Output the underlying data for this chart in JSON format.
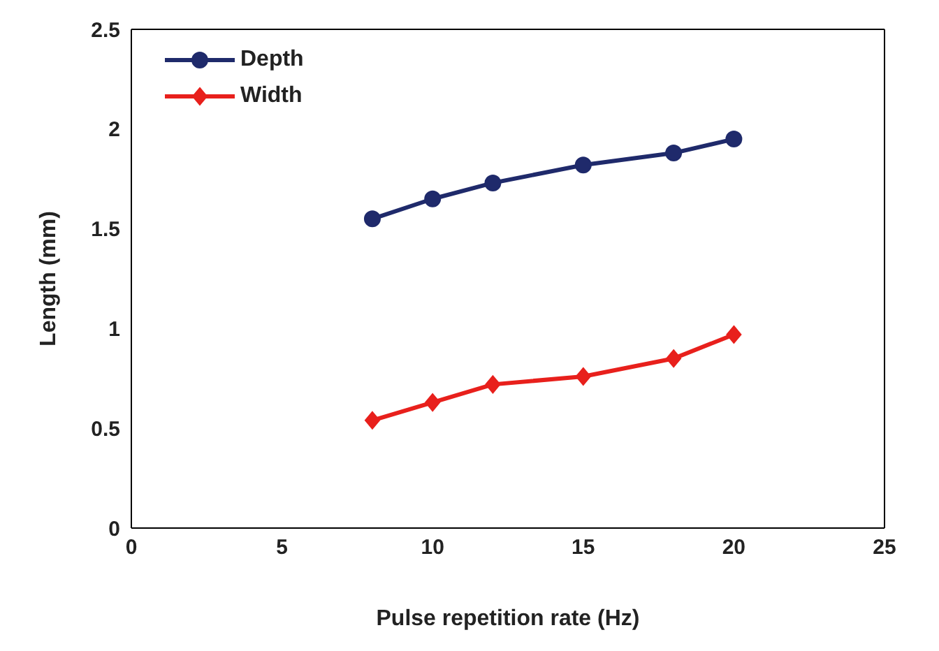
{
  "chart_data": {
    "type": "line",
    "xlabel": "Pulse repetition rate (Hz)",
    "ylabel": "Length (mm)",
    "x": [
      8,
      10,
      12,
      15,
      18,
      20
    ],
    "series": [
      {
        "name": "Depth",
        "color": "#1f2a6b",
        "marker": "circle",
        "values": [
          1.55,
          1.65,
          1.73,
          1.82,
          1.88,
          1.95
        ]
      },
      {
        "name": "Width",
        "color": "#e8201c",
        "marker": "diamond",
        "values": [
          0.54,
          0.63,
          0.72,
          0.76,
          0.85,
          0.97
        ]
      }
    ],
    "xlim": [
      0,
      25
    ],
    "xticks": [
      0,
      5,
      10,
      15,
      20,
      25
    ],
    "ylim": [
      0,
      2.5
    ],
    "yticks": [
      0,
      0.5,
      1,
      1.5,
      2,
      2.5
    ],
    "grid": false,
    "legend": "top left"
  }
}
